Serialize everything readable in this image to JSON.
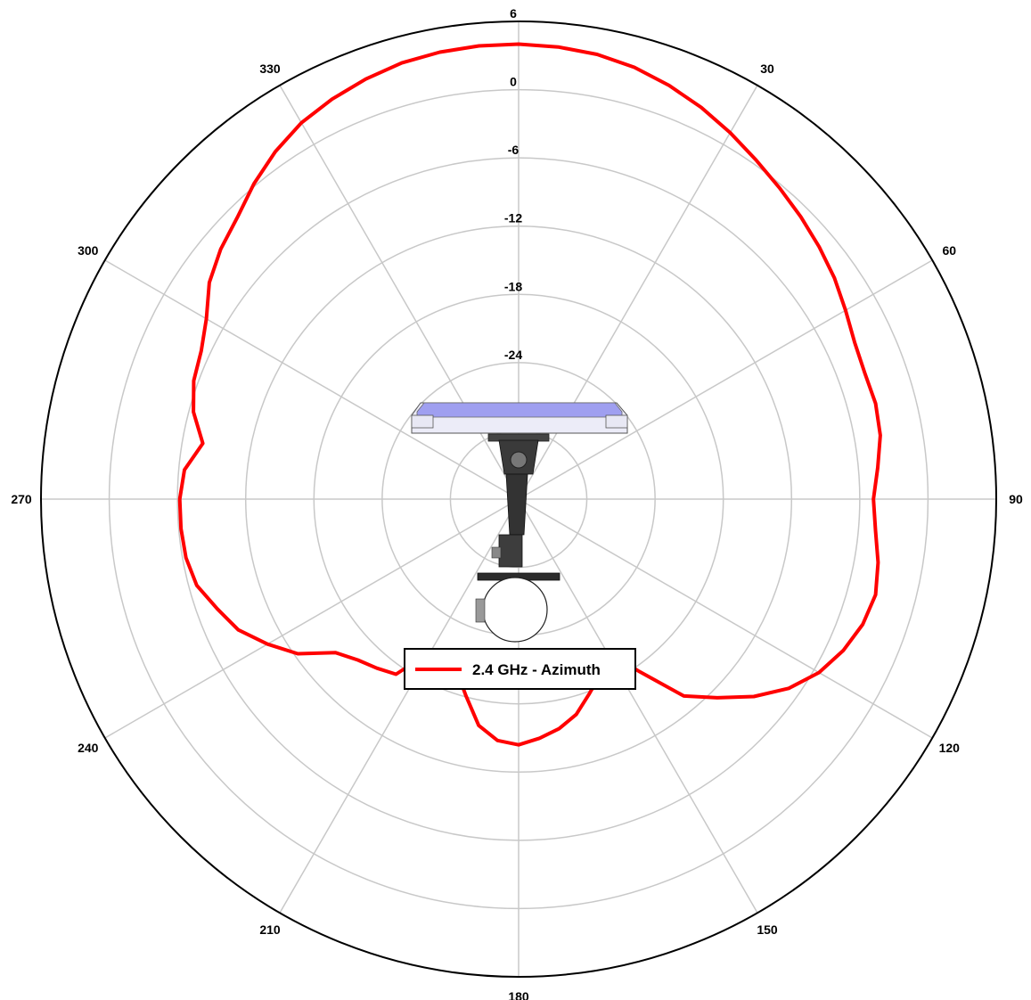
{
  "chart_data": {
    "type": "polar-line",
    "title": "",
    "radial_axis": {
      "range": [
        -36,
        6
      ],
      "ticks": [
        6,
        0,
        -6,
        -12,
        -18,
        -24
      ],
      "tick_labels": [
        "6",
        "0",
        "-6",
        "-12",
        "-18",
        "-24"
      ]
    },
    "angular_axis": {
      "direction": "clockwise",
      "zero_at": "top",
      "ticks": [
        0,
        30,
        60,
        90,
        120,
        150,
        180,
        210,
        240,
        270,
        300,
        330
      ],
      "tick_labels": [
        "",
        "30",
        "60",
        "90",
        "120",
        "150",
        "180",
        "210",
        "240",
        "270",
        "300",
        "330"
      ]
    },
    "grid": true,
    "legend": {
      "placement": "center-bottom",
      "entries": [
        "2.4 GHz - Azimuth"
      ]
    },
    "series": [
      {
        "name": "2.4 GHz - Azimuth",
        "color": "#ff0000",
        "points": [
          [
            0,
            4.0
          ],
          [
            5,
            3.9
          ],
          [
            10,
            3.7
          ],
          [
            15,
            3.3
          ],
          [
            20,
            2.7
          ],
          [
            25,
            2.0
          ],
          [
            30,
            1.2
          ],
          [
            35,
            0.4
          ],
          [
            40,
            -0.3
          ],
          [
            45,
            -0.9
          ],
          [
            50,
            -1.5
          ],
          [
            55,
            -2.1
          ],
          [
            60,
            -2.8
          ],
          [
            65,
            -3.4
          ],
          [
            70,
            -3.6
          ],
          [
            75,
            -3.5
          ],
          [
            80,
            -3.7
          ],
          [
            85,
            -4.3
          ],
          [
            90,
            -4.8
          ],
          [
            95,
            -4.5
          ],
          [
            100,
            -3.9
          ],
          [
            105,
            -3.5
          ],
          [
            110,
            -3.8
          ],
          [
            115,
            -4.5
          ],
          [
            120,
            -5.5
          ],
          [
            125,
            -7.0
          ],
          [
            130,
            -9.0
          ],
          [
            135,
            -11.3
          ],
          [
            140,
            -13.4
          ],
          [
            145,
            -17.5
          ],
          [
            150,
            -20.6
          ],
          [
            155,
            -19.0
          ],
          [
            160,
            -17.8
          ],
          [
            165,
            -16.4
          ],
          [
            170,
            -15.5
          ],
          [
            175,
            -14.9
          ],
          [
            180,
            -14.4
          ],
          [
            185,
            -14.7
          ],
          [
            190,
            -15.8
          ],
          [
            195,
            -18.1
          ],
          [
            200,
            -20.0
          ],
          [
            205,
            -21.1
          ],
          [
            210,
            -20.5
          ],
          [
            215,
            -17.2
          ],
          [
            220,
            -16.6
          ],
          [
            225,
            -16.0
          ],
          [
            230,
            -15.0
          ],
          [
            235,
            -12.3
          ],
          [
            240,
            -10.5
          ],
          [
            245,
            -8.8
          ],
          [
            250,
            -7.8
          ],
          [
            255,
            -6.7
          ],
          [
            260,
            -6.3
          ],
          [
            265,
            -6.2
          ],
          [
            270,
            -6.2
          ],
          [
            275,
            -6.5
          ],
          [
            280,
            -7.8
          ],
          [
            285,
            -6.4
          ],
          [
            290,
            -5.6
          ],
          [
            295,
            -5.2
          ],
          [
            300,
            -4.3
          ],
          [
            305,
            -2.8
          ],
          [
            310,
            -1.8
          ],
          [
            315,
            -1.0
          ],
          [
            320,
            0.2
          ],
          [
            325,
            1.3
          ],
          [
            330,
            2.2
          ],
          [
            335,
            2.8
          ],
          [
            340,
            3.3
          ],
          [
            345,
            3.7
          ],
          [
            350,
            3.9
          ],
          [
            355,
            4.0
          ],
          [
            360,
            4.0
          ]
        ]
      }
    ]
  }
}
